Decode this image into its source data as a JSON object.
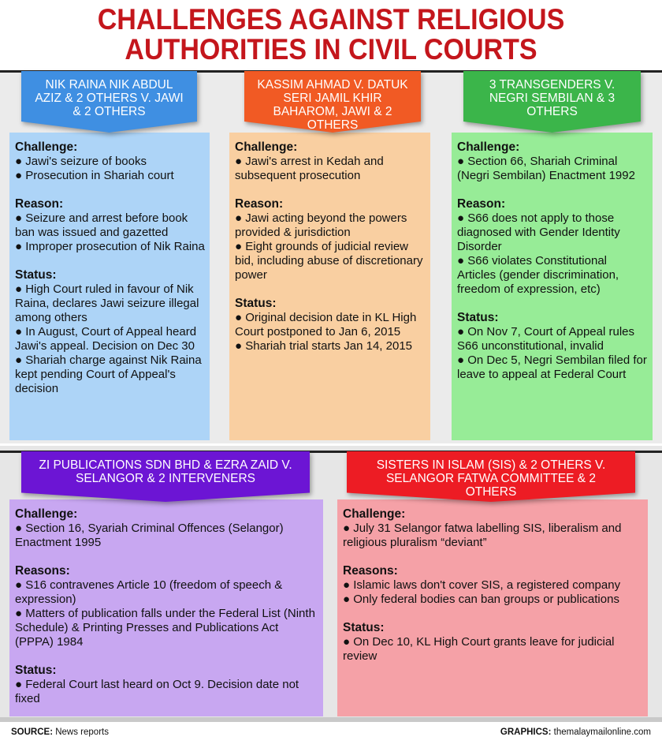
{
  "title": [
    "CHALLENGES AGAINST RELIGIOUS",
    "AUTHORITIES IN CIVIL COURTS"
  ],
  "colors": {
    "title": "#c4161c",
    "blue": "#3f8fe2",
    "blue_box": "#add4f7",
    "orange": "#f15a24",
    "orange_box": "#f9cfa1",
    "green": "#3bb54a",
    "green_box": "#97ec97",
    "purple": "#6c15d4",
    "purple_box": "#c8a7f1",
    "red": "#ed1c24",
    "red_box": "#f5a1a7"
  },
  "cases": [
    {
      "banner": "NIK RAINA NIK ABDUL AZIZ & 2 OTHERS V. JAWI & 2 OTHERS",
      "sections": [
        {
          "heading": "Challenge:",
          "items": [
            "● Jawi's seizure of books",
            "● Prosecution in Shariah court"
          ]
        },
        {
          "heading": "Reason:",
          "items": [
            "● Seizure and arrest before book ban was issued and gazetted",
            "● Improper prosecution of Nik Raina"
          ]
        },
        {
          "heading": "Status:",
          "items": [
            "● High Court ruled in favour of Nik Raina, declares Jawi seizure illegal among others",
            "● In August, Court of Appeal heard Jawi's appeal. Decision on Dec 30",
            "● Shariah charge against Nik Raina kept pending Court of Appeal's decision"
          ]
        }
      ]
    },
    {
      "banner": "KASSIM AHMAD V. DATUK SERI JAMIL KHIR BAHAROM, JAWI & 2 OTHERS",
      "sections": [
        {
          "heading": "Challenge:",
          "items": [
            "● Jawi's arrest in Kedah and subsequent prosecution"
          ]
        },
        {
          "heading": "Reason:",
          "items": [
            "● Jawi acting beyond the powers provided & jurisdiction",
            "● Eight grounds of judicial review bid, including abuse of discretionary power"
          ]
        },
        {
          "heading": "Status:",
          "items": [
            "● Original decision date in KL High Court postponed to Jan 6, 2015",
            "● Shariah trial starts Jan 14, 2015"
          ]
        }
      ]
    },
    {
      "banner": "3 TRANSGENDERS V. NEGRI SEMBILAN & 3 OTHERS",
      "sections": [
        {
          "heading": "Challenge:",
          "items": [
            "● Section 66, Shariah Criminal (Negri Sembilan) Enactment 1992"
          ]
        },
        {
          "heading": "Reason:",
          "items": [
            "● S66 does not apply to those diagnosed with Gender Identity Disorder",
            "● S66 violates Constitutional Articles (gender discrimination, freedom of expression, etc)"
          ]
        },
        {
          "heading": "Status:",
          "items": [
            "● On Nov 7, Court of Appeal rules S66 unconstitutional, invalid",
            "● On Dec 5, Negri Sembilan filed for leave to appeal at Federal Court"
          ]
        }
      ]
    },
    {
      "banner": "ZI PUBLICATIONS SDN BHD & EZRA ZAID V. SELANGOR & 2 INTERVENERS",
      "sections": [
        {
          "heading": "Challenge:",
          "items": [
            "● Section 16, Syariah Criminal Offences (Selangor) Enactment 1995"
          ]
        },
        {
          "heading": "Reasons:",
          "items": [
            "● S16 contravenes Article 10 (freedom of speech & expression)",
            "● Matters of publication falls under the Federal List (Ninth Schedule) & Printing Presses and Publications Act (PPPA) 1984"
          ]
        },
        {
          "heading": "Status:",
          "items": [
            "● Federal Court last heard on Oct 9. Decision date not fixed"
          ]
        }
      ]
    },
    {
      "banner": "SISTERS IN ISLAM (SIS) & 2 OTHERS V. SELANGOR FATWA COMMITTEE & 2 OTHERS",
      "sections": [
        {
          "heading": "Challenge:",
          "items": [
            "● July 31 Selangor fatwa labelling SIS, liberalism and religious pluralism “deviant”"
          ]
        },
        {
          "heading": "Reasons:",
          "items": [
            "● Islamic laws don't cover SIS, a registered company",
            "● Only federal bodies can ban groups or publications"
          ]
        },
        {
          "heading": "Status:",
          "items": [
            "● On Dec 10, KL High Court grants leave for judicial review"
          ]
        }
      ]
    }
  ],
  "footer": {
    "source_label": "SOURCE:",
    "source": "News reports",
    "graphics_label": "GRAPHICS:",
    "graphics": "themalaymailonline.com"
  }
}
